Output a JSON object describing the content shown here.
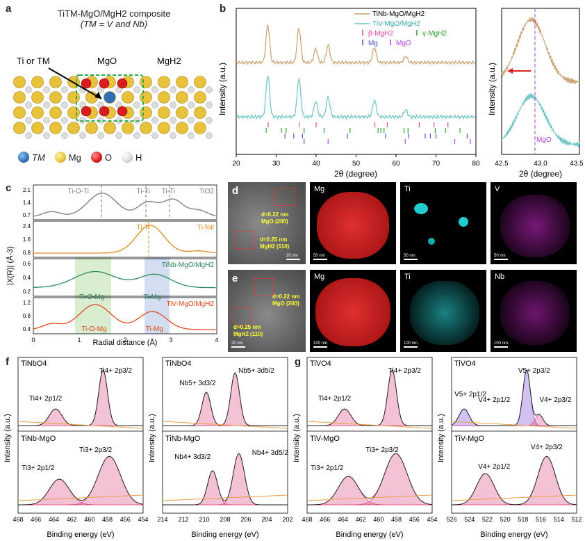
{
  "panels": {
    "a": {
      "label": "a",
      "title_line1": "TiTM-MgO/MgH2 composite",
      "title_line2": "(TM = V and Nb)",
      "ti_label": "Ti or TM",
      "mgo_label": "MgO",
      "mgh2_label": "MgH2",
      "legend": [
        "TM",
        "Mg",
        "O",
        "H"
      ],
      "colors": {
        "tm": "#2f6fb5",
        "mg": "#e8c23a",
        "o": "#d91c1c",
        "h": "#d9d9d9",
        "frame": "#2dae4a"
      }
    },
    "b": {
      "label": "b",
      "ylabel": "Intensity (a.u.)",
      "xlabel": "2θ (degree)",
      "legend": [
        {
          "name": "TiNb-MgO/MgH2",
          "color": "#c9a070"
        },
        {
          "name": "TiV-MgO/MgH2",
          "color": "#6cc4c4"
        },
        {
          "name": "β-MgH2",
          "color": "#e040a0"
        },
        {
          "name": "γ-MgH2",
          "color": "#2aa02a"
        },
        {
          "name": "Mg",
          "color": "#5050c8"
        },
        {
          "name": "MgO",
          "color": "#b040e0"
        }
      ],
      "xticks": [
        "20",
        "30",
        "40",
        "50",
        "60",
        "70",
        "80"
      ],
      "inset_xticks": [
        "42.5",
        "43.0",
        "43.5"
      ],
      "inset_marker_label": "MgO"
    },
    "c": {
      "label": "c",
      "ylabel": "|X(R)| (Å-3)",
      "xlabel": "Radial distance (Å)",
      "xticks": [
        "0",
        "1",
        "2",
        "3",
        "4"
      ],
      "traces": [
        {
          "name": "TiO2",
          "color": "#7a7a7a",
          "annotations": [
            "Ti-O-Ti",
            "Ti-Ti",
            "Ti-Ti"
          ],
          "yticks": [
            "2.1",
            "1.4",
            "0.7"
          ]
        },
        {
          "name": "Ti-foil",
          "color": "#e08a1e",
          "annotations": [
            "Ti-Ti"
          ],
          "yticks": [
            "2.4",
            "1.6",
            "0.8"
          ]
        },
        {
          "name": "TiNb-MgO/MgH2",
          "color": "#2e8a5a",
          "annotations": [
            "Ti-O-Mg",
            "Ti-Mg"
          ],
          "yticks": [
            "0.6",
            "0.4",
            "0.2"
          ]
        },
        {
          "name": "TiV-MgO/MgH2",
          "color": "#e04a1a",
          "annotations": [
            "Ti-O-Mg",
            "Ti-Mg"
          ],
          "yticks": [
            "1.2",
            "0.8",
            "0.4"
          ]
        }
      ]
    },
    "d": {
      "label": "d",
      "fringe1": "d=0.22 nm",
      "fringe1_plane": "MgO (200)",
      "fringe2": "d=0.25 nm",
      "fringe2_plane": "MgH2 (110)",
      "maps": [
        "Mg",
        "Ti",
        "V"
      ],
      "scales": [
        "20 nm",
        "50 nm",
        "50 nm",
        "50 nm"
      ]
    },
    "e": {
      "label": "e",
      "fringe1": "d=0.22 nm",
      "fringe1_plane": "MgO (200)",
      "fringe2": "d=0.25 nm",
      "fringe2_plane": "MgH2 (110)",
      "maps": [
        "Mg",
        "Ti",
        "Nb"
      ],
      "scales": [
        "20 nm",
        "100 nm",
        "100 nm",
        "100 nm"
      ]
    },
    "f": {
      "label": "f",
      "left_top_title": "TiNbO4",
      "left_bottom_title": "TiNb-MgO",
      "right_top_title": "TiNbO4",
      "right_bottom_title": "TiNb-MgO",
      "left_peaks_top": [
        "Ti4+ 2p1/2",
        "Ti4+ 2p3/2"
      ],
      "left_peaks_bottom": [
        "Ti3+ 2p1/2",
        "Ti3+ 2p3/2"
      ],
      "right_peaks_top": [
        "Nb5+ 3d3/2",
        "Nb5+ 3d5/2"
      ],
      "right_peaks_bottom": [
        "Nb4+ 3d3/2",
        "Nb4+ 3d5/2"
      ],
      "left_xticks": [
        "468",
        "466",
        "464",
        "462",
        "460",
        "458",
        "456",
        "454"
      ],
      "right_xticks": [
        "214",
        "212",
        "210",
        "208",
        "206",
        "204",
        "202"
      ],
      "xlabel": "Binding energy (eV)",
      "ylabel": "Intensity (a.u.)"
    },
    "g": {
      "label": "g",
      "left_top_title": "TiVO4",
      "left_bottom_title": "TiV-MgO",
      "right_top_title": "TiVO4",
      "right_bottom_title": "TiV-MgO",
      "left_peaks_top": [
        "Ti4+ 2p1/2",
        "Ti4+ 2p3/2"
      ],
      "left_peaks_bottom": [
        "Ti3+ 2p1/2",
        "Ti3+ 2p3/2"
      ],
      "right_peaks_top": [
        "V5+ 2p1/2",
        "V4+ 2p1/2",
        "V5+ 2p3/2",
        "V4+ 2p3/2"
      ],
      "right_peaks_bottom": [
        "V4+ 2p1/2",
        "V4+ 2p3/2"
      ],
      "left_xticks": [
        "468",
        "466",
        "464",
        "462",
        "460",
        "458",
        "456",
        "454"
      ],
      "right_xticks": [
        "526",
        "524",
        "522",
        "520",
        "518",
        "516",
        "514",
        "512"
      ],
      "xlabel": "Binding energy (eV)",
      "ylabel": "Intensity (a.u.)"
    }
  },
  "chart_data": [
    {
      "type": "line",
      "panel": "b",
      "xlabel": "2θ (degree)",
      "ylabel": "Intensity (a.u.)",
      "xlim": [
        20,
        80
      ],
      "series": [
        {
          "name": "TiNb-MgO/MgH2",
          "peaks_2theta": [
            27.9,
            35.7,
            39.9,
            43.0,
            54.6,
            62.4
          ]
        },
        {
          "name": "TiV-MgO/MgH2",
          "peaks_2theta": [
            27.9,
            35.7,
            39.9,
            43.0,
            54.6,
            62.4
          ]
        }
      ]
    },
    {
      "type": "line",
      "panel": "c",
      "xlabel": "Radial distance (Å)",
      "ylabel": "|X(R)| (Å-3)",
      "xlim": [
        0,
        4
      ],
      "series": [
        {
          "name": "TiO2",
          "peaks": [
            1.5,
            2.5,
            3.0
          ]
        },
        {
          "name": "Ti-foil",
          "peaks": [
            2.55
          ]
        },
        {
          "name": "TiNb-MgO/MgH2",
          "peaks": [
            1.4,
            2.6
          ]
        },
        {
          "name": "TiV-MgO/MgH2",
          "peaks": [
            1.35,
            2.6
          ]
        }
      ]
    }
  ]
}
